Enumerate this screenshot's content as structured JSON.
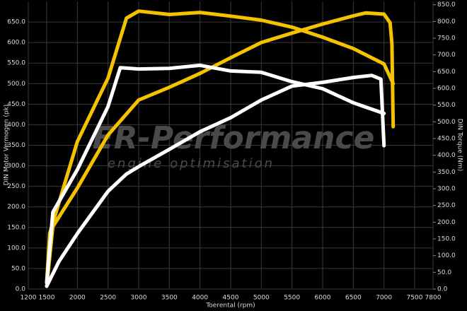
{
  "chart_data": {
    "type": "line",
    "watermark": "ER-Performance",
    "watermark_subtitle": "engine optimisation",
    "x_label": "Toerental (rpm)",
    "y_label": "DIN Motor Vermogen (pk)",
    "y2_label": "DIN Torque (Nm)",
    "xlim": [
      1200,
      7800
    ],
    "xticks": [
      1200,
      1500,
      2000,
      2500,
      3000,
      3500,
      4000,
      4500,
      5000,
      5500,
      6000,
      6500,
      7000,
      7500,
      7800
    ],
    "ylim": [
      0,
      700
    ],
    "yticks": [
      {
        "value": 0,
        "label": "0.0"
      },
      {
        "value": 50,
        "label": "50.0"
      },
      {
        "value": 100,
        "label": "100.0"
      },
      {
        "value": 150,
        "label": "150.0"
      },
      {
        "value": 200,
        "label": "200.0"
      },
      {
        "value": 250,
        "label": "250.0"
      },
      {
        "value": 300,
        "label": "300.0"
      },
      {
        "value": 350,
        "label": "350.0"
      },
      {
        "value": 400,
        "label": "400.0"
      },
      {
        "value": 450,
        "label": "450.0"
      },
      {
        "value": 500,
        "label": "500.0"
      },
      {
        "value": 550,
        "label": "550.0"
      },
      {
        "value": 600,
        "label": "600.0"
      },
      {
        "value": 650,
        "label": "650.0"
      }
    ],
    "y2lim": [
      0,
      860
    ],
    "y2ticks": [
      {
        "value": 0,
        "label": "0.0"
      },
      {
        "value": 50,
        "label": "50.0"
      },
      {
        "value": 100,
        "label": "100.0"
      },
      {
        "value": 150,
        "label": "150.0"
      },
      {
        "value": 200,
        "label": "200.0"
      },
      {
        "value": 250,
        "label": "250.0"
      },
      {
        "value": 300,
        "label": "300.0"
      },
      {
        "value": 350,
        "label": "350.0"
      },
      {
        "value": 400,
        "label": "400.0"
      },
      {
        "value": 450,
        "label": "450.0"
      },
      {
        "value": 500,
        "label": "500.0"
      },
      {
        "value": 550,
        "label": "550.0"
      },
      {
        "value": 600,
        "label": "600.0"
      },
      {
        "value": 650,
        "label": "650.0"
      },
      {
        "value": 700,
        "label": "700.0"
      },
      {
        "value": 750,
        "label": "750.0"
      },
      {
        "value": 800,
        "label": "800.0"
      },
      {
        "value": 850,
        "label": "850.0"
      }
    ],
    "grid": true,
    "series": [
      {
        "color": "#f5c200",
        "axis": "y2",
        "x": [
          1500,
          1550,
          2000,
          2500,
          2800,
          3000,
          3500,
          4000,
          4500,
          5000,
          5500,
          6000,
          6500,
          7000,
          7150
        ],
        "values": [
          20,
          167,
          441,
          631,
          810,
          831,
          821,
          827,
          816,
          804,
          783,
          753,
          719,
          673,
          614
        ]
      },
      {
        "color": "#f5c200",
        "x": [
          1500,
          1600,
          2000,
          2500,
          3000,
          3500,
          4000,
          4500,
          5000,
          5500,
          6000,
          6500,
          6700,
          7000,
          7100,
          7130,
          7150
        ],
        "values": [
          7,
          152,
          246,
          375,
          460,
          491,
          525,
          563,
          600,
          623,
          645,
          665,
          672,
          669,
          648,
          597,
          395
        ]
      },
      {
        "color": "#ffffff",
        "x": [
          1500,
          1700,
          2000,
          2500,
          2800,
          3000,
          3500,
          4000,
          4500,
          5000,
          5500,
          6000,
          6500,
          6800,
          6950,
          7000
        ],
        "values": [
          7,
          67,
          135,
          238,
          280,
          298,
          340,
          383,
          417,
          460,
          494,
          503,
          515,
          520,
          511,
          349
        ]
      },
      {
        "color": "#ffffff",
        "axis": "y2",
        "x": [
          1500,
          1600,
          2000,
          2500,
          2700,
          3000,
          3500,
          4000,
          4500,
          5000,
          5500,
          6000,
          6500,
          7000
        ],
        "values": [
          19,
          230,
          357,
          546,
          662,
          658,
          660,
          669,
          652,
          648,
          620,
          599,
          557,
          525
        ]
      }
    ]
  }
}
